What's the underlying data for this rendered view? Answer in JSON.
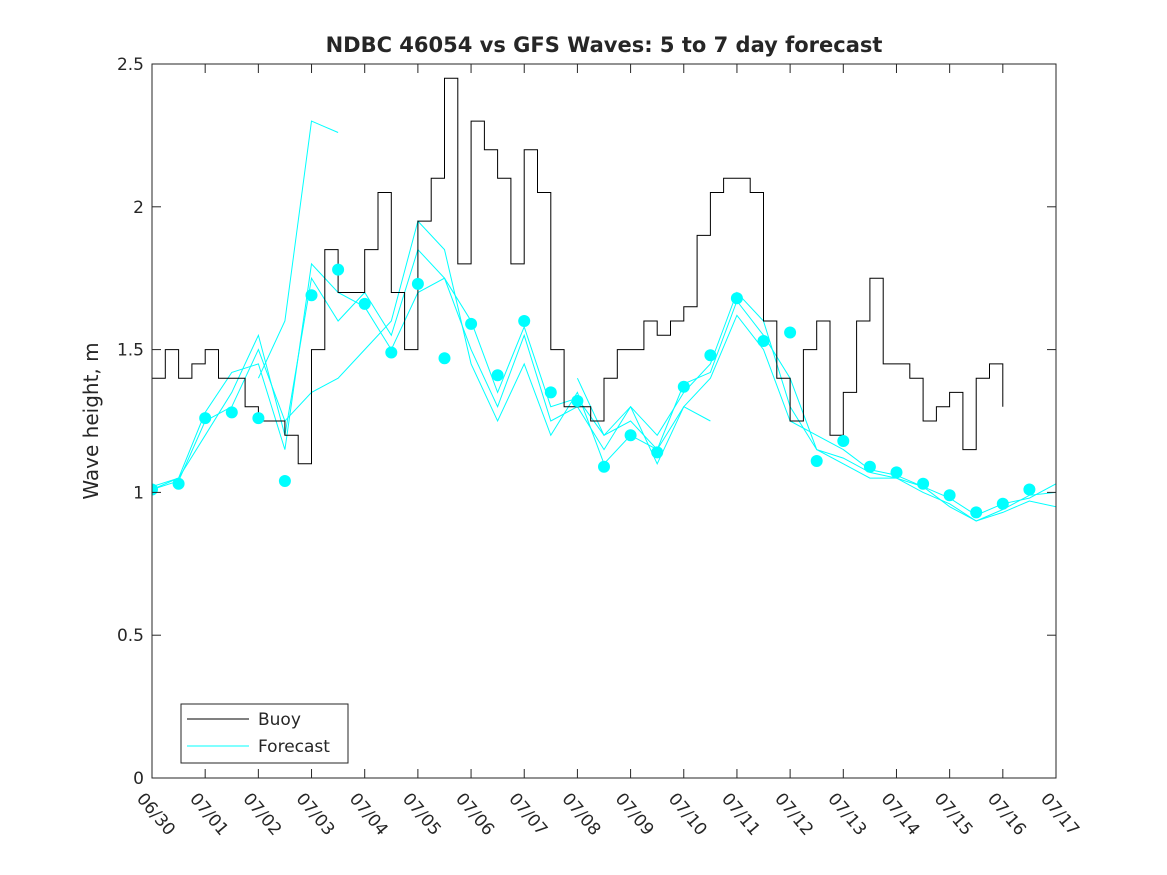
{
  "chart_data": {
    "type": "line",
    "title": "NDBC 46054 vs GFS Waves: 5 to 7 day forecast",
    "xlabel": "",
    "ylabel": "Wave height, m",
    "xlim_days": [
      0,
      17
    ],
    "ylim": [
      0,
      2.5
    ],
    "yticks": [
      0,
      0.5,
      1,
      1.5,
      2,
      2.5
    ],
    "ytick_labels": [
      "0",
      "0.5",
      "1",
      "1.5",
      "2",
      "2.5"
    ],
    "xtick_labels": [
      "06/30",
      "07/01",
      "07/02",
      "07/03",
      "07/04",
      "07/05",
      "07/06",
      "07/07",
      "07/08",
      "07/09",
      "07/10",
      "07/11",
      "07/12",
      "07/13",
      "07/14",
      "07/15",
      "07/16",
      "07/17"
    ],
    "grid": false,
    "legend": {
      "position": "bottom-left",
      "entries": [
        "Buoy",
        "Forecast"
      ]
    },
    "colors": {
      "buoy": "#000000",
      "forecast": "#00ffff",
      "axes": "#262626"
    },
    "buoy": {
      "name": "Buoy",
      "x": [
        0.0,
        0.25,
        0.5,
        0.75,
        1.0,
        1.25,
        1.5,
        1.75,
        2.0,
        2.25,
        2.5,
        2.75,
        3.0,
        3.25,
        3.5,
        3.75,
        4.0,
        4.25,
        4.5,
        4.75,
        5.0,
        5.25,
        5.5,
        5.75,
        6.0,
        6.25,
        6.5,
        6.75,
        7.0,
        7.25,
        7.5,
        7.75,
        8.0,
        8.25,
        8.5,
        8.75,
        9.0,
        9.25,
        9.5,
        9.75,
        10.0,
        10.25,
        10.5,
        10.75,
        11.0,
        11.25,
        11.5,
        11.75,
        12.0,
        12.25,
        12.5,
        12.75,
        13.0,
        13.25,
        13.5,
        13.75,
        14.0,
        14.25,
        14.5,
        14.75,
        15.0,
        15.25,
        15.5,
        15.75,
        16.0,
        16.25,
        16.5,
        16.75,
        17.0
      ],
      "y": [
        1.4,
        1.5,
        1.4,
        1.45,
        1.5,
        1.4,
        1.4,
        1.3,
        1.25,
        1.25,
        1.2,
        1.1,
        1.5,
        1.85,
        1.7,
        1.7,
        1.85,
        2.05,
        1.7,
        1.5,
        1.95,
        2.1,
        2.45,
        1.8,
        2.3,
        2.2,
        2.1,
        1.8,
        2.2,
        2.05,
        1.5,
        1.3,
        1.3,
        1.25,
        1.4,
        1.5,
        1.5,
        1.6,
        1.55,
        1.6,
        1.65,
        1.9,
        2.05,
        2.1,
        2.1,
        2.05,
        1.6,
        1.4,
        1.25,
        1.5,
        1.6,
        1.2,
        1.35,
        1.6,
        1.75,
        1.45,
        1.45,
        1.4,
        1.25,
        1.3,
        1.35,
        1.15,
        1.4,
        1.45,
        1.3,
        null,
        null,
        null,
        null
      ]
    },
    "forecast": {
      "name": "Forecast",
      "runs": [
        {
          "x": [
            0.0,
            0.5,
            1.0,
            1.5,
            2.0,
            2.5,
            3.0,
            3.5,
            4.0,
            4.5,
            5.0,
            5.5,
            6.0,
            6.5,
            7.0,
            7.5,
            8.0,
            8.5,
            9.0,
            9.5,
            10.0,
            10.5,
            11.0,
            11.5,
            12.0,
            12.5,
            13.0,
            13.5,
            14.0,
            14.5,
            15.0,
            15.5,
            16.0,
            16.5,
            17.0
          ],
          "y": [
            1.01,
            1.05,
            1.28,
            1.42,
            1.45,
            1.15,
            1.8,
            1.7,
            1.65,
            1.5,
            1.7,
            1.75,
            1.6,
            1.35,
            1.58,
            1.3,
            1.33,
            1.2,
            1.25,
            1.15,
            1.38,
            1.42,
            1.67,
            1.55,
            1.4,
            1.15,
            1.1,
            1.05,
            1.05,
            1.02,
            0.98,
            0.92,
            0.96,
            0.98,
            1.03
          ]
        },
        {
          "x": [
            0.0,
            0.5,
            1.0,
            1.5,
            2.0,
            2.5,
            3.0,
            3.5,
            4.0,
            4.5,
            5.0,
            5.5,
            6.0,
            6.5,
            7.0,
            7.5,
            8.0,
            8.5,
            9.0,
            9.5,
            10.0,
            10.5,
            11.0,
            11.5,
            12.0,
            12.5,
            13.0,
            13.5,
            14.0,
            14.5,
            15.0,
            15.5,
            16.0,
            16.5,
            17.0
          ],
          "y": [
            1.02,
            1.05,
            1.2,
            1.35,
            1.55,
            1.2,
            1.75,
            1.6,
            1.7,
            1.55,
            1.85,
            1.75,
            1.5,
            1.3,
            1.55,
            1.25,
            1.3,
            1.15,
            1.3,
            1.2,
            1.35,
            1.45,
            1.7,
            1.6,
            1.3,
            1.15,
            1.12,
            1.07,
            1.05,
            1.0,
            0.96,
            0.9,
            0.94,
            0.99,
            1.0
          ]
        },
        {
          "x": [
            0.0,
            0.5,
            1.0,
            1.5,
            2.0,
            2.5,
            3.0,
            3.5,
            4.0,
            4.5,
            5.0,
            5.5,
            6.0,
            6.5,
            7.0,
            7.5,
            8.0,
            8.5,
            9.0,
            9.5,
            10.0,
            10.5,
            11.0,
            11.5,
            12.0,
            12.5,
            13.0,
            13.5,
            14.0,
            14.5,
            15.0,
            15.5,
            16.0,
            16.5,
            17.0
          ],
          "y": [
            1.01,
            1.04,
            1.25,
            1.3,
            1.5,
            1.25,
            1.35,
            1.4,
            1.5,
            1.6,
            1.95,
            1.85,
            1.45,
            1.25,
            1.45,
            1.2,
            1.35,
            1.1,
            1.2,
            1.15,
            1.3,
            1.4,
            1.62,
            1.5,
            1.25,
            1.2,
            1.15,
            1.08,
            1.06,
            1.02,
            0.95,
            0.9,
            0.93,
            0.97,
            0.95
          ]
        },
        {
          "x": [
            2.0,
            2.5,
            3.0,
            3.25,
            3.5
          ],
          "y": [
            1.4,
            1.6,
            2.3,
            2.28,
            2.26
          ]
        },
        {
          "x": [
            8.0,
            8.5,
            9.0,
            9.5,
            10.0,
            10.5
          ],
          "y": [
            1.4,
            1.2,
            1.3,
            1.1,
            1.3,
            1.25
          ]
        }
      ],
      "markers": {
        "x": [
          0.0,
          0.5,
          1.0,
          1.5,
          2.0,
          2.5,
          3.0,
          3.5,
          4.0,
          4.5,
          5.0,
          5.5,
          6.0,
          6.5,
          7.0,
          7.5,
          8.0,
          8.5,
          9.0,
          9.5,
          10.0,
          10.5,
          11.0,
          11.5,
          12.0,
          12.5,
          13.0,
          13.5,
          14.0,
          14.5,
          15.0,
          15.5,
          16.0,
          16.5
        ],
        "y": [
          1.01,
          1.03,
          1.26,
          1.28,
          1.26,
          1.04,
          1.69,
          1.78,
          1.66,
          1.49,
          1.73,
          1.47,
          1.59,
          1.41,
          1.6,
          1.35,
          1.32,
          1.09,
          1.2,
          1.14,
          1.37,
          1.48,
          1.68,
          1.53,
          1.56,
          1.11,
          1.18,
          1.09,
          1.07,
          1.03,
          0.99,
          0.93,
          0.96,
          1.01
        ]
      }
    }
  }
}
